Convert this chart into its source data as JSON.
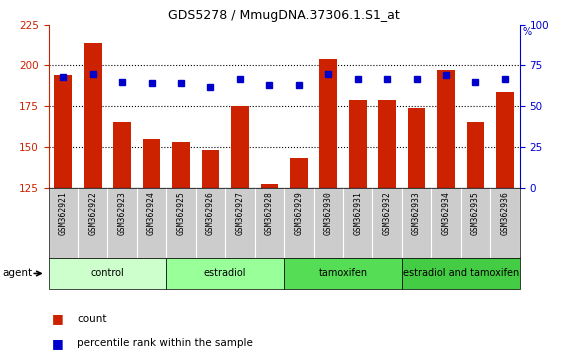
{
  "title": "GDS5278 / MmugDNA.37306.1.S1_at",
  "samples": [
    "GSM362921",
    "GSM362922",
    "GSM362923",
    "GSM362924",
    "GSM362925",
    "GSM362926",
    "GSM362927",
    "GSM362928",
    "GSM362929",
    "GSM362930",
    "GSM362931",
    "GSM362932",
    "GSM362933",
    "GSM362934",
    "GSM362935",
    "GSM362936"
  ],
  "counts": [
    194,
    214,
    165,
    155,
    153,
    148,
    175,
    127,
    143,
    204,
    179,
    179,
    174,
    197,
    165,
    184
  ],
  "percentile_ranks": [
    68,
    70,
    65,
    64,
    64,
    62,
    67,
    63,
    63,
    70,
    67,
    67,
    67,
    69,
    65,
    67
  ],
  "ylim_left": [
    125,
    225
  ],
  "ylim_right": [
    0,
    100
  ],
  "yticks_left": [
    125,
    150,
    175,
    200,
    225
  ],
  "yticks_right": [
    0,
    25,
    50,
    75,
    100
  ],
  "groups": [
    {
      "label": "control",
      "start": 0,
      "end": 4,
      "color": "#ccffcc"
    },
    {
      "label": "estradiol",
      "start": 4,
      "end": 8,
      "color": "#99ff99"
    },
    {
      "label": "tamoxifen",
      "start": 8,
      "end": 12,
      "color": "#55dd55"
    },
    {
      "label": "estradiol and tamoxifen",
      "start": 12,
      "end": 16,
      "color": "#44cc44"
    }
  ],
  "bar_color": "#cc2200",
  "dot_color": "#0000cc",
  "background_color": "#ffffff",
  "plot_bg_color": "#ffffff",
  "grid_color": "#000000",
  "tick_color_left": "#cc2200",
  "tick_color_right": "#0000cc",
  "sample_bg_color": "#cccccc",
  "agent_label": "agent",
  "legend_count": "count",
  "legend_percentile": "percentile rank within the sample"
}
